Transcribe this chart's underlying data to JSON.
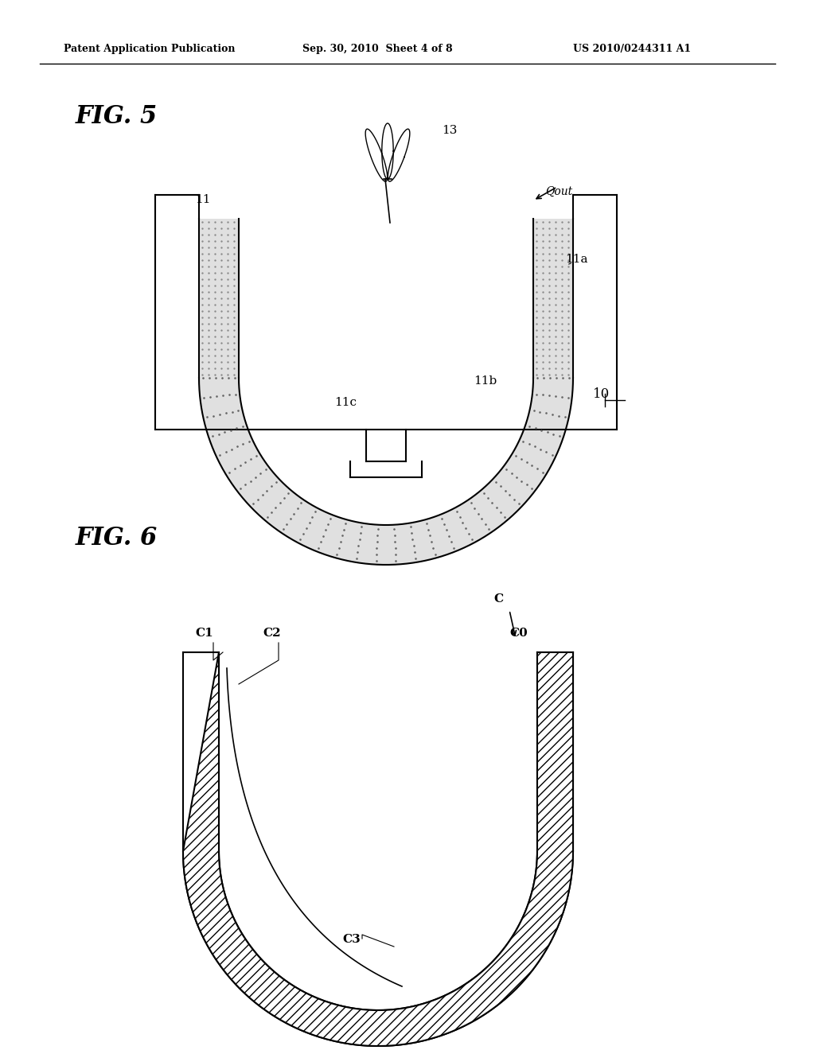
{
  "bg_color": "#ffffff",
  "header_left": "Patent Application Publication",
  "header_center": "Sep. 30, 2010  Sheet 4 of 8",
  "header_right": "US 2010/0244311 A1",
  "fig5_label": "FIG. 5",
  "fig6_label": "FIG. 6",
  "line_color": "#000000",
  "stipple_color": "#c8c8c8",
  "hatch_color": "#000000"
}
